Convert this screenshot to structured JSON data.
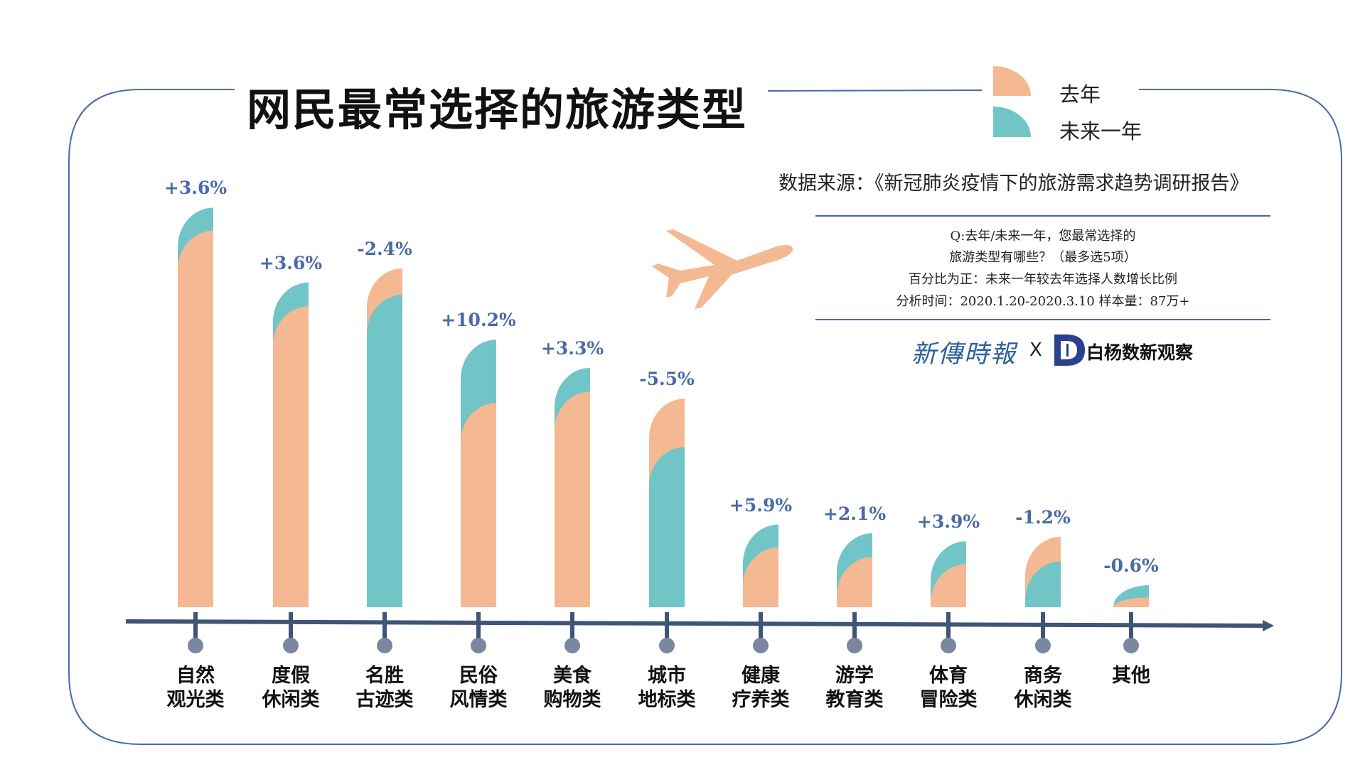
{
  "title": "网民最常选择的旅游类型",
  "legend": [
    {
      "label": "去年",
      "color": "#f4b993"
    },
    {
      "label": "未来一年",
      "color": "#72c5c6"
    }
  ],
  "source": "数据来源：《新冠肺炎疫情下的旅游需求趋势调研报告》",
  "notes": [
    "Q:去年/未来一年，您最常选择的",
    "旅游类型有哪些？（最多选5项）",
    "百分比为正：未来一年较去年选择人数增长比例",
    "分析时间：2020.1.20-2020.3.10   样本量：87万+"
  ],
  "logos": {
    "left": "新傳時報",
    "separator": "X",
    "right": "白杨数新观察",
    "right_mark": "D"
  },
  "chart_data": {
    "type": "bar",
    "title": "网民最常选择的旅游类型",
    "categories": [
      [
        "自然",
        "观光类"
      ],
      [
        "度假",
        "休闲类"
      ],
      [
        "名胜",
        "古迹类"
      ],
      [
        "民俗",
        "风情类"
      ],
      [
        "美食",
        "购物类"
      ],
      [
        "城市",
        "地标类"
      ],
      [
        "健康",
        "疗养类"
      ],
      [
        "游学",
        "教育类"
      ],
      [
        "体育",
        "冒险类"
      ],
      [
        "商务",
        "休闲类"
      ],
      [
        "其他"
      ]
    ],
    "series": [
      {
        "name": "去年",
        "color": "#f4b993",
        "values": [
          42.8,
          34.2,
          38.5,
          23.2,
          24.5,
          23.7,
          6.8,
          5.7,
          4.9,
          8.0,
          1.1
        ]
      },
      {
        "name": "未来一年",
        "color": "#72c5c6",
        "values": [
          45.4,
          36.9,
          35.5,
          30.4,
          27.2,
          18.2,
          9.4,
          8.4,
          7.5,
          5.2,
          2.5
        ]
      }
    ],
    "growth_labels": [
      "+3.6%",
      "+3.6%",
      "-2.4%",
      "+10.2%",
      "+3.3%",
      "-5.5%",
      "+5.9%",
      "+2.1%",
      "+3.9%",
      "-1.2%",
      "-0.6%"
    ],
    "value_note": "relative bar heights estimated (no value axis printed)",
    "grid": false,
    "legend_position": "top-right"
  },
  "colors": {
    "frame": "#4a6aa8",
    "axis": "#3f5577",
    "dot": "#7a879e",
    "label": "#4a6aa8"
  }
}
